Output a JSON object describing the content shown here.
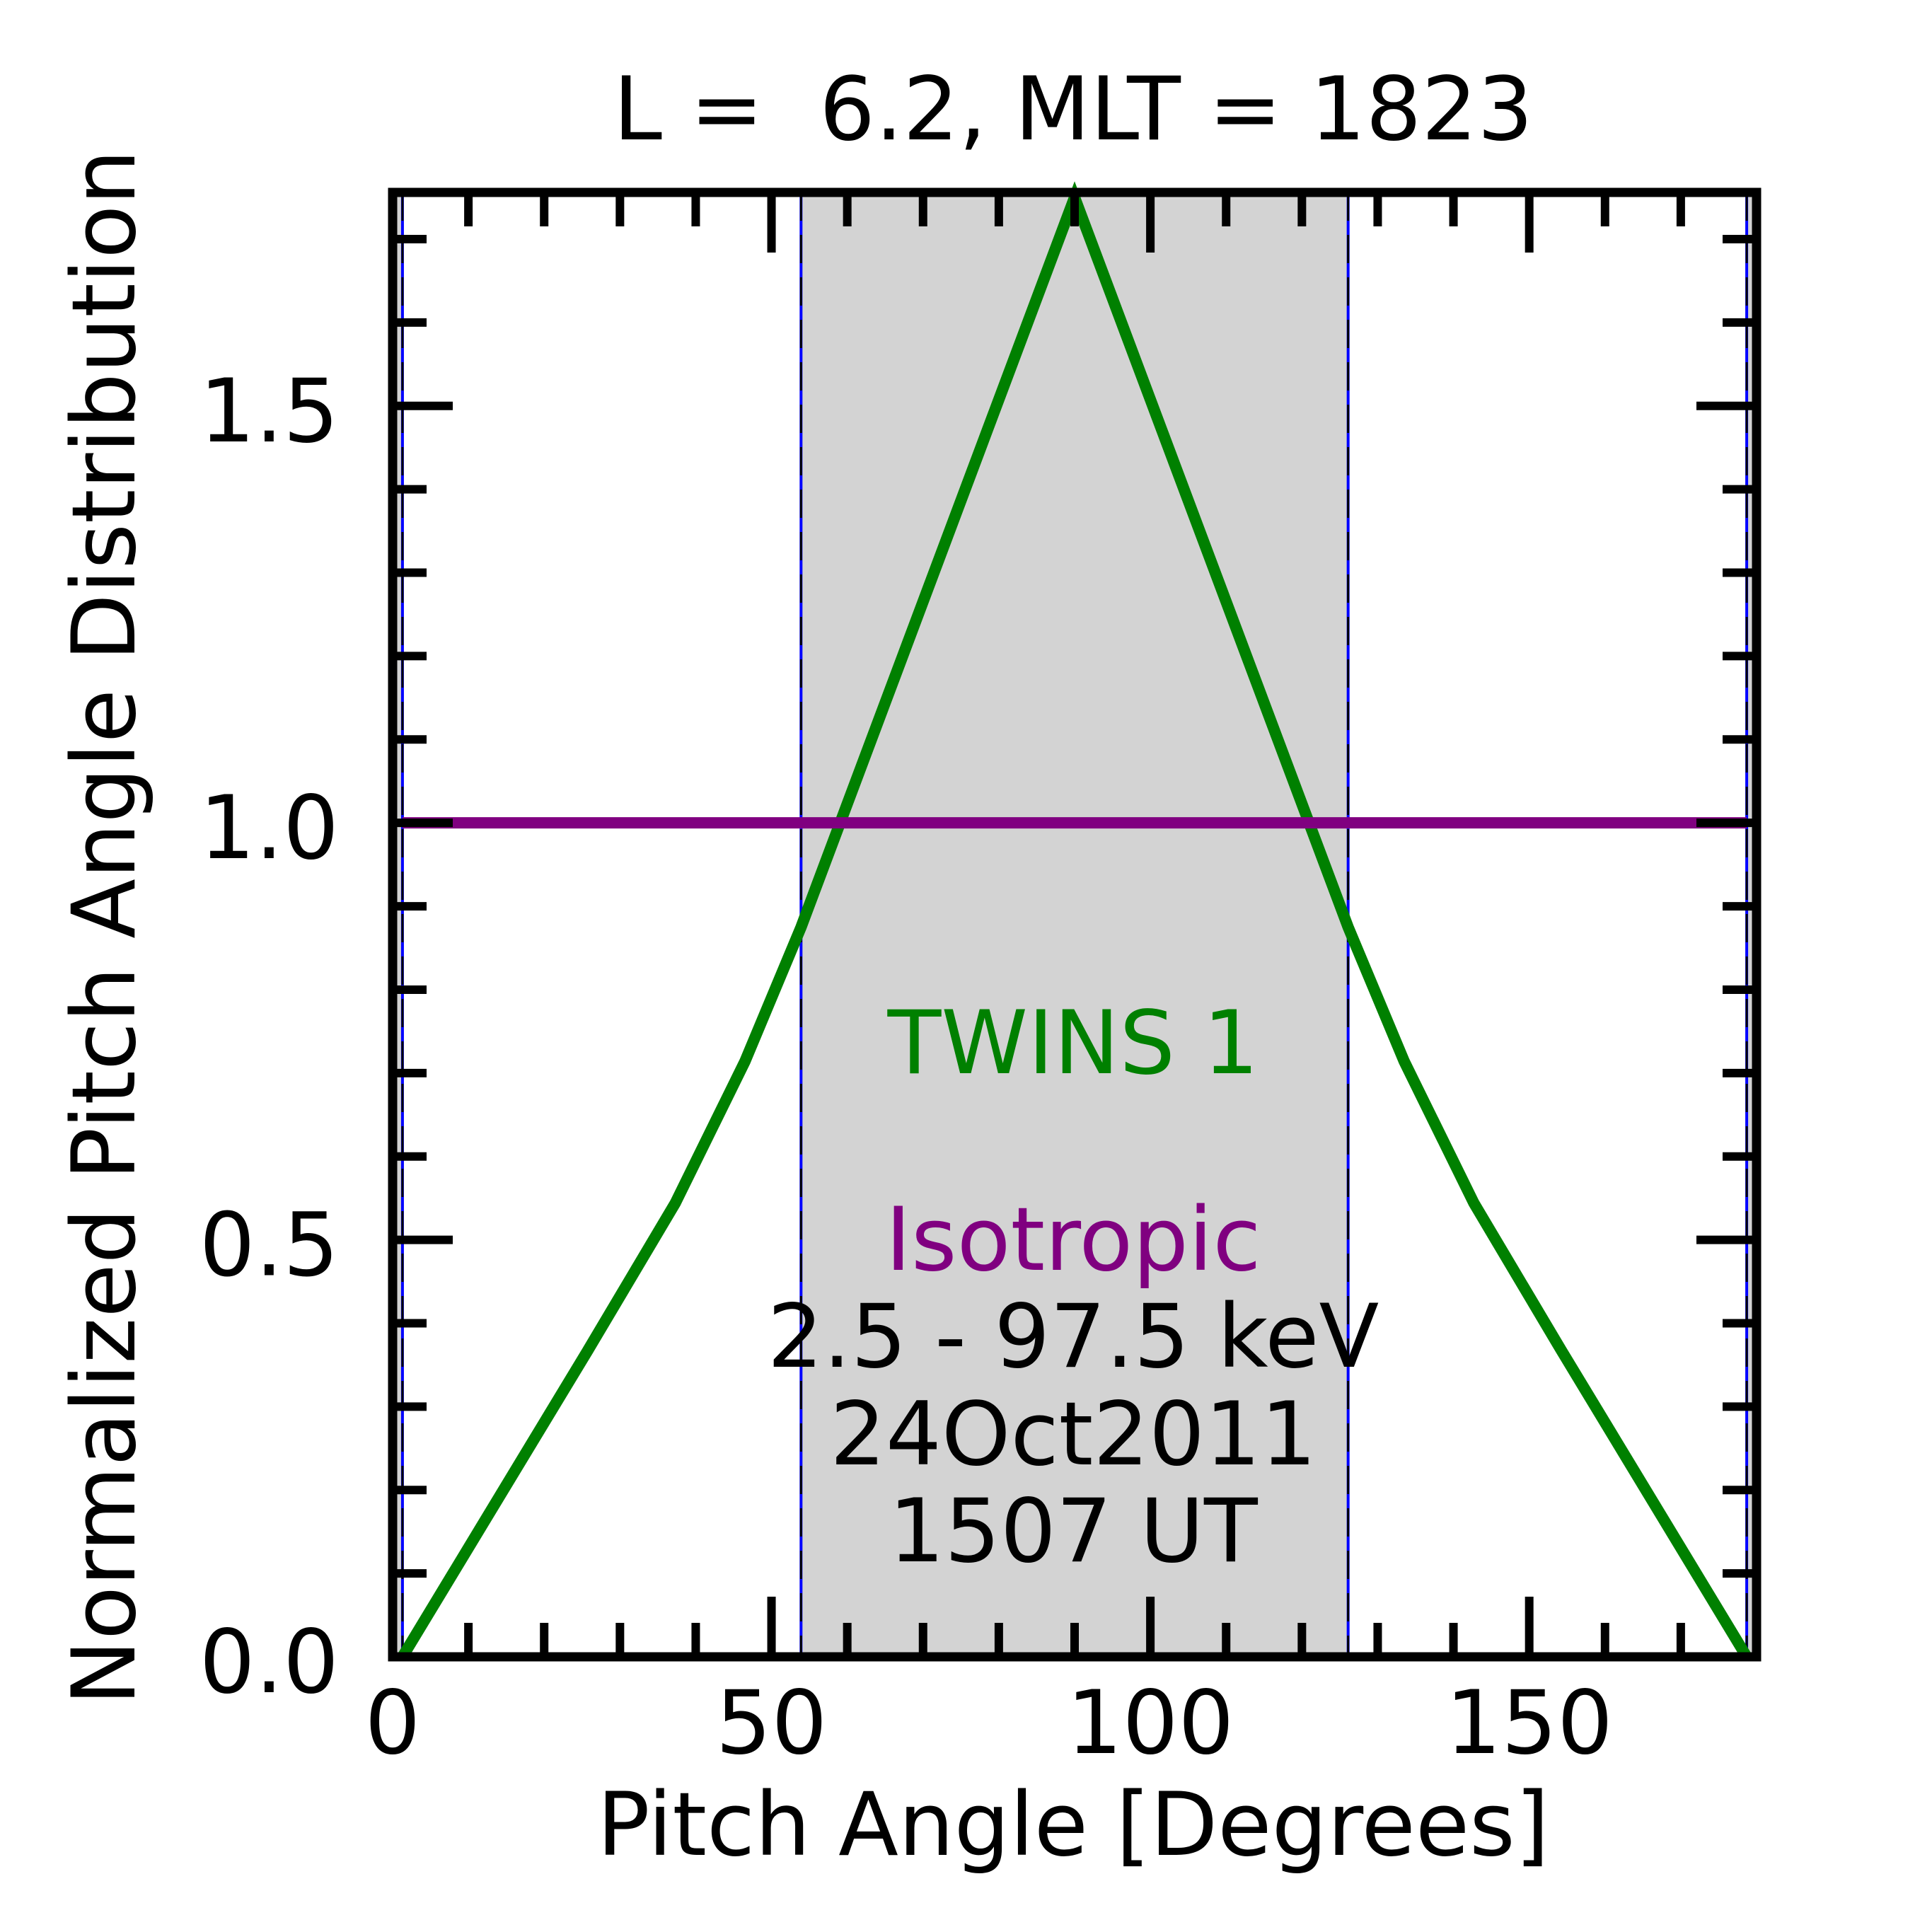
{
  "chart_data": {
    "type": "line",
    "title": "L =  6.2, MLT = 1823",
    "xlabel": "Pitch Angle [Degrees]",
    "ylabel": "Normalized Pitch Angle Distribution",
    "xlim": [
      0,
      180
    ],
    "ylim": [
      0,
      1.756
    ],
    "xticks": [
      0,
      50,
      100,
      150
    ],
    "xtick_labels": [
      "0",
      "50",
      "100",
      "150"
    ],
    "xminor_step": 10,
    "yticks": [
      0,
      0.5,
      1.0,
      1.5
    ],
    "ytick_labels": [
      "0.0",
      "0.5",
      "1.0",
      "1.5"
    ],
    "yminor_step": 0.1,
    "grid": false,
    "shaded_regions": [
      [
        0,
        1.3
      ],
      [
        53.9,
        126.1
      ],
      [
        178.7,
        180
      ]
    ],
    "shade_color": "#d3d3d3",
    "vlines": [
      1.3,
      53.9,
      126.1,
      178.7
    ],
    "series": [
      {
        "name": "TWINS 1",
        "color": "#008000",
        "x": [
          1.3,
          25.8,
          37.3,
          46.5,
          53.9,
          90,
          126.1,
          133.5,
          142.7,
          154.2,
          178.7
        ],
        "y": [
          0.0,
          0.368,
          0.544,
          0.714,
          0.875,
          1.75,
          0.875,
          0.714,
          0.544,
          0.368,
          0.0
        ]
      },
      {
        "name": "Isotropic",
        "color": "#800080",
        "x": [
          1.3,
          178.7
        ],
        "y": [
          1.0,
          1.0
        ]
      }
    ],
    "annotations": {
      "twins": "TWINS 1",
      "isotropic": "Isotropic",
      "energy": "2.5 - 97.5 keV",
      "date": "24Oct2011",
      "time": "1507 UT"
    }
  }
}
